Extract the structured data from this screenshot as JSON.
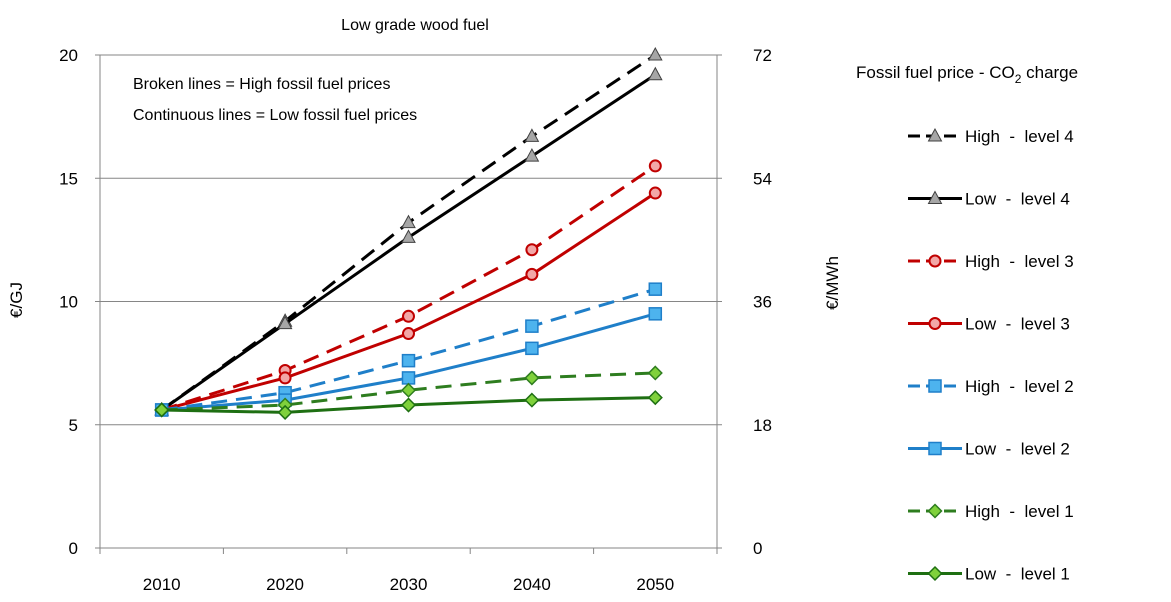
{
  "chart_data": {
    "type": "line",
    "title": "Low grade wood fuel",
    "x": [
      2010,
      2020,
      2030,
      2040,
      2050
    ],
    "xlim": [
      2005,
      2055
    ],
    "ylabel": "€/GJ",
    "ylim": [
      0,
      20
    ],
    "yticks": [
      0,
      5,
      10,
      15,
      20
    ],
    "y2label": "€/MWh",
    "y2lim": [
      0,
      72
    ],
    "y2ticks": [
      0,
      18,
      36,
      54,
      72
    ],
    "grid": true,
    "annotations": [
      "Broken lines = High fossil fuel prices",
      "Continuous lines = Low fossil fuel prices"
    ],
    "legend": {
      "title": "Fossil fuel price - CO",
      "title_sub": "2",
      "title_tail": " charge",
      "placement": "right"
    },
    "series": [
      {
        "name": "High  -  level 4",
        "values": [
          5.6,
          9.2,
          13.2,
          16.7,
          20.0
        ],
        "color": "#000000",
        "dash": true,
        "marker": "triangle",
        "marker_fill": "#a6a6a6"
      },
      {
        "name": "Low  -  level 4",
        "values": [
          5.6,
          9.1,
          12.6,
          15.9,
          19.2
        ],
        "color": "#000000",
        "dash": false,
        "marker": "triangle",
        "marker_fill": "#a6a6a6"
      },
      {
        "name": "High  -  level 3",
        "values": [
          5.6,
          7.2,
          9.4,
          12.1,
          15.5
        ],
        "color": "#c00000",
        "dash": true,
        "marker": "circle",
        "marker_fill": "#f2a7a7"
      },
      {
        "name": "Low  -  level 3",
        "values": [
          5.6,
          6.9,
          8.7,
          11.1,
          14.4
        ],
        "color": "#c00000",
        "dash": false,
        "marker": "circle",
        "marker_fill": "#f2a7a7"
      },
      {
        "name": "High  -  level 2",
        "values": [
          5.6,
          6.3,
          7.6,
          9.0,
          10.5
        ],
        "color": "#1f7fc9",
        "dash": true,
        "marker": "square",
        "marker_fill": "#4db3ee"
      },
      {
        "name": "Low  -  level 2",
        "values": [
          5.6,
          6.0,
          6.9,
          8.1,
          9.5
        ],
        "color": "#1f7fc9",
        "dash": false,
        "marker": "square",
        "marker_fill": "#4db3ee"
      },
      {
        "name": "High  -  level 1",
        "values": [
          5.6,
          5.8,
          6.4,
          6.9,
          7.1
        ],
        "color": "#2e7d1f",
        "dash": true,
        "marker": "diamond",
        "marker_fill": "#7fd13b"
      },
      {
        "name": "Low  -  level 1",
        "values": [
          5.6,
          5.5,
          5.8,
          6.0,
          6.1
        ],
        "color": "#1e6f12",
        "dash": false,
        "marker": "diamond",
        "marker_fill": "#7fd13b"
      }
    ]
  }
}
